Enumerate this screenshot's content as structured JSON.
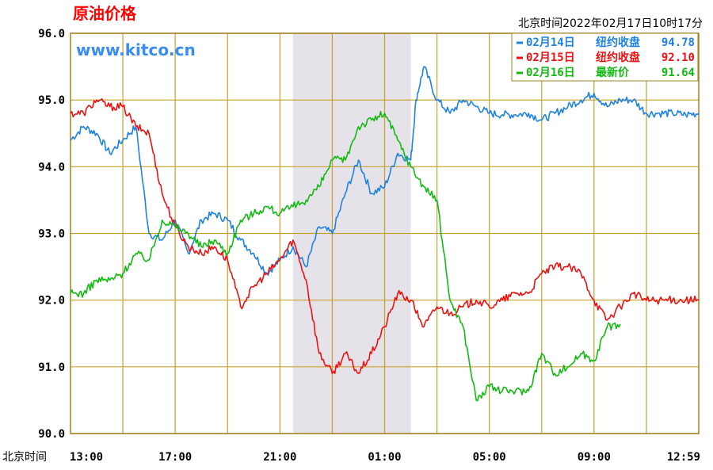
{
  "chart_data": {
    "type": "line",
    "title": "原油价格",
    "watermark": "www.kitco.cn",
    "timestamp": "北京时间2022年02月17日10时17分",
    "xlabel": "北京时间",
    "x_ticks": [
      "13:00",
      "17:00",
      "21:00",
      "01:00",
      "05:00",
      "09:00",
      "12:59"
    ],
    "y_ticks": [
      "96.0",
      "95.0",
      "94.0",
      "93.0",
      "92.0",
      "91.0",
      "90.0"
    ],
    "ylim": [
      90.0,
      96.0
    ],
    "x_unit": "hours after 13:00 Beijing time",
    "xlim": [
      0,
      24
    ],
    "shaded_range": [
      8.5,
      13.0
    ],
    "grid": true,
    "legend_position": "top-right",
    "colors": {
      "grid": "#c8a030",
      "border": "#a08020",
      "shade": "#e6e2ea"
    },
    "series": [
      {
        "name": "02月14日",
        "label": "纽约收盘",
        "value": "94.78",
        "color": "#1e82e0",
        "x": [
          0,
          0.5,
          1,
          1.5,
          2,
          2.5,
          3,
          3.5,
          4,
          4.5,
          5,
          5.5,
          6,
          6.5,
          7,
          7.5,
          8,
          8.5,
          9,
          9.5,
          10,
          10.5,
          11,
          11.5,
          12,
          12.5,
          13,
          13.2,
          13.5,
          14,
          14.5,
          15,
          15.5,
          16,
          16.5,
          17,
          17.5,
          18,
          18.5,
          19,
          19.5,
          20,
          20.5,
          21,
          21.5,
          22,
          22.5,
          23,
          23.5,
          24
        ],
        "y": [
          94.4,
          94.6,
          94.5,
          94.2,
          94.4,
          94.6,
          93.0,
          92.9,
          93.2,
          92.7,
          93.2,
          93.3,
          93.2,
          92.9,
          92.7,
          92.4,
          92.6,
          92.8,
          92.5,
          93.1,
          93.0,
          93.6,
          94.1,
          93.6,
          93.7,
          94.2,
          94.1,
          95.0,
          95.5,
          95.0,
          94.8,
          95.0,
          94.9,
          94.8,
          94.78,
          94.78,
          94.8,
          94.7,
          94.8,
          94.9,
          95.0,
          95.1,
          94.9,
          95.0,
          95.0,
          94.8,
          94.8,
          94.8,
          94.78,
          94.8
        ]
      },
      {
        "name": "02月15日",
        "label": "纽约收盘",
        "value": "92.10",
        "color": "#ee1111",
        "x": [
          0,
          0.5,
          1,
          1.5,
          2,
          2.5,
          3,
          3.5,
          4,
          4.5,
          5,
          5.5,
          6,
          6.5,
          7,
          7.5,
          8,
          8.5,
          9,
          9.5,
          10,
          10.5,
          11,
          11.5,
          12,
          12.5,
          13,
          13.5,
          14,
          14.5,
          15,
          15.5,
          16,
          16.5,
          17,
          17.5,
          18,
          18.5,
          19,
          19.5,
          20,
          20.5,
          21,
          21.5,
          22,
          22.5,
          23,
          23.5,
          24
        ],
        "y": [
          94.8,
          94.8,
          95.0,
          94.9,
          94.9,
          94.6,
          94.5,
          93.6,
          93.1,
          92.8,
          92.7,
          92.8,
          92.6,
          91.9,
          92.2,
          92.4,
          92.6,
          92.9,
          92.3,
          91.2,
          90.9,
          91.2,
          90.9,
          91.2,
          91.6,
          92.1,
          92.0,
          91.6,
          91.9,
          91.8,
          91.9,
          92.0,
          91.9,
          92.0,
          92.1,
          92.1,
          92.4,
          92.5,
          92.5,
          92.4,
          92.0,
          91.7,
          91.9,
          92.1,
          92.0,
          92.0,
          92.0,
          92.0,
          92.0
        ]
      },
      {
        "name": "02月16日",
        "label": "最新价",
        "value": "91.64",
        "color": "#11bb11",
        "x": [
          0,
          0.5,
          1,
          1.5,
          2,
          2.5,
          3,
          3.5,
          4,
          4.5,
          5,
          5.5,
          6,
          6.5,
          7,
          7.5,
          8,
          8.5,
          9,
          9.5,
          10,
          10.5,
          11,
          11.5,
          12,
          12.5,
          13,
          13.5,
          14,
          14.5,
          15,
          15.5,
          16,
          16.5,
          17,
          17.5,
          18,
          18.5,
          19,
          19.5,
          20,
          20.5,
          21
        ],
        "y": [
          92.1,
          92.1,
          92.3,
          92.3,
          92.4,
          92.7,
          92.6,
          93.2,
          93.1,
          93.0,
          92.8,
          92.9,
          92.7,
          93.2,
          93.3,
          93.4,
          93.3,
          93.4,
          93.5,
          93.7,
          94.1,
          94.1,
          94.6,
          94.7,
          94.8,
          94.4,
          94.0,
          93.7,
          93.5,
          92.0,
          91.6,
          90.5,
          90.7,
          90.64,
          90.64,
          90.64,
          91.2,
          90.9,
          91.0,
          91.2,
          91.1,
          91.6,
          91.64
        ]
      }
    ]
  }
}
